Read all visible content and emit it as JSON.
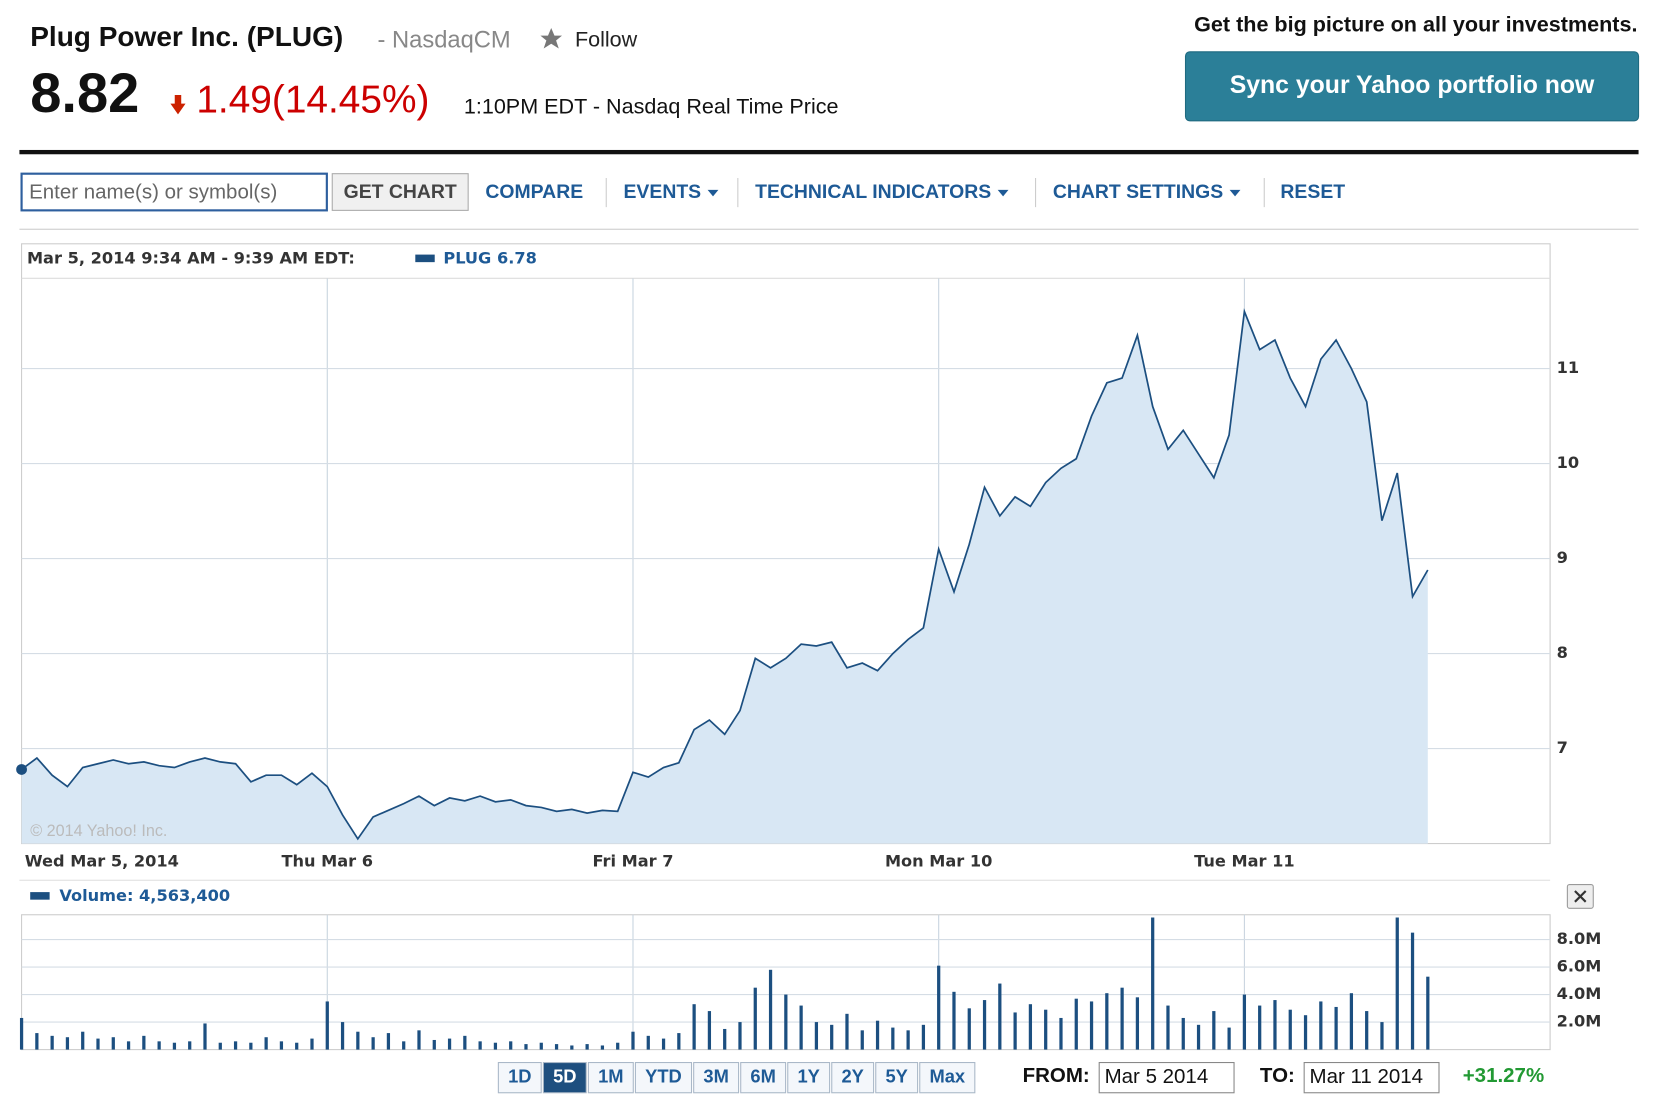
{
  "header": {
    "company": "Plug Power Inc. (PLUG)",
    "exchange": "- NasdaqCM",
    "follow": "Follow",
    "price": "8.82",
    "change": "1.49(14.45%)",
    "time": "1:10PM EDT - Nasdaq Real Time Price",
    "promo": "Get the big picture on all your investments.",
    "sync_button": "Sync your Yahoo portfolio now"
  },
  "toolbar": {
    "input_placeholder": "Enter name(s) or symbol(s)",
    "buttons": [
      "GET CHART",
      "COMPARE",
      "EVENTS",
      "TECHNICAL INDICATORS",
      "CHART SETTINGS",
      "RESET"
    ]
  },
  "chart_data": [
    {
      "type": "area",
      "header": "Mar 5, 2014 9:34 AM - 9:39 AM EDT:",
      "legend": "PLUG 6.78",
      "color": "#1c4f80",
      "fill": "#d8e7f4",
      "grid": true,
      "categories": [
        "Wed Mar 5, 2014",
        null,
        null,
        null,
        null,
        null,
        null,
        null,
        null,
        null,
        null,
        null,
        null,
        null,
        null,
        null,
        null,
        null,
        null,
        null,
        "Thu Mar 6",
        null,
        null,
        null,
        null,
        null,
        null,
        null,
        null,
        null,
        null,
        null,
        null,
        null,
        null,
        null,
        null,
        null,
        null,
        null,
        "Fri Mar 7",
        null,
        null,
        null,
        null,
        null,
        null,
        null,
        null,
        null,
        null,
        null,
        null,
        null,
        null,
        null,
        null,
        null,
        null,
        null,
        "Mon Mar 10",
        null,
        null,
        null,
        null,
        null,
        null,
        null,
        null,
        null,
        null,
        null,
        null,
        null,
        null,
        null,
        null,
        null,
        null,
        null,
        "Tue Mar 11",
        null,
        null,
        null,
        null,
        null,
        null,
        null,
        null,
        null,
        null,
        null,
        null
      ],
      "values": [
        6.78,
        6.9,
        6.72,
        6.6,
        6.8,
        6.84,
        6.88,
        6.84,
        6.86,
        6.82,
        6.8,
        6.86,
        6.9,
        6.86,
        6.84,
        6.65,
        6.72,
        6.72,
        6.62,
        6.74,
        6.6,
        6.3,
        6.05,
        6.28,
        6.35,
        6.42,
        6.5,
        6.4,
        6.48,
        6.45,
        6.5,
        6.44,
        6.46,
        6.4,
        6.38,
        6.34,
        6.36,
        6.32,
        6.35,
        6.34,
        6.75,
        6.7,
        6.8,
        6.85,
        7.2,
        7.3,
        7.15,
        7.4,
        7.95,
        7.85,
        7.95,
        8.1,
        8.08,
        8.12,
        7.85,
        7.9,
        7.82,
        8.0,
        8.15,
        8.27,
        9.1,
        8.65,
        9.15,
        9.75,
        9.45,
        9.65,
        9.55,
        9.8,
        9.95,
        10.05,
        10.5,
        10.85,
        10.9,
        11.35,
        10.6,
        10.15,
        10.35,
        10.1,
        9.85,
        10.3,
        11.6,
        11.2,
        11.3,
        10.9,
        10.6,
        11.1,
        11.3,
        11.0,
        10.65,
        9.4,
        9.9,
        8.6,
        8.88
      ],
      "ylim": [
        6,
        11.95
      ],
      "yticks": [
        7,
        8,
        9,
        10,
        11
      ]
    },
    {
      "type": "bar",
      "legend": "Volume: 4,563,400",
      "color": "#1c4f80",
      "grid": true,
      "values": [
        2.3,
        1.2,
        1.0,
        0.9,
        1.3,
        0.8,
        0.9,
        0.6,
        1.0,
        0.6,
        0.5,
        0.6,
        1.9,
        0.5,
        0.6,
        0.5,
        0.9,
        0.6,
        0.5,
        0.8,
        3.5,
        2.0,
        1.3,
        0.9,
        1.2,
        0.6,
        1.4,
        0.7,
        0.8,
        1.0,
        0.6,
        0.5,
        0.6,
        0.4,
        0.5,
        0.4,
        0.3,
        0.4,
        0.3,
        0.5,
        1.3,
        1.0,
        0.8,
        1.2,
        3.3,
        2.8,
        1.5,
        2.0,
        4.5,
        5.8,
        4.0,
        3.2,
        2.0,
        1.8,
        2.6,
        1.4,
        2.1,
        1.6,
        1.4,
        1.8,
        6.1,
        4.2,
        3.0,
        3.6,
        4.8,
        2.7,
        3.3,
        2.9,
        2.3,
        3.7,
        3.5,
        4.1,
        4.5,
        3.8,
        9.6,
        3.2,
        2.3,
        1.8,
        2.8,
        1.6,
        4.0,
        3.2,
        3.6,
        2.9,
        2.5,
        3.5,
        3.1,
        4.1,
        2.8,
        2.0,
        9.6,
        8.5,
        5.3
      ],
      "ylim": [
        0,
        9.8
      ],
      "yticks": [
        {
          "value": 2,
          "label": "2.0M"
        },
        {
          "value": 4,
          "label": "4.0M"
        },
        {
          "value": 6,
          "label": "6.0M"
        },
        {
          "value": 8,
          "label": "8.0M"
        }
      ]
    }
  ],
  "copyright": "© 2014 Yahoo! Inc.",
  "footer": {
    "ranges": [
      "1D",
      "5D",
      "1M",
      "YTD",
      "3M",
      "6M",
      "1Y",
      "2Y",
      "5Y",
      "Max"
    ],
    "from_label": "FROM:",
    "from": "Mar 5 2014",
    "to_label": "TO:",
    "to": "Mar 11 2014",
    "change": "+31.27%"
  }
}
